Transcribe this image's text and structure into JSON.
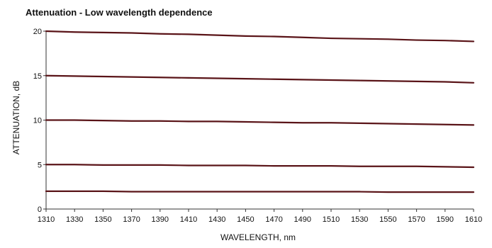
{
  "chart_data": {
    "type": "line",
    "title": "Attenuation - Low wavelength dependence",
    "xlabel": "WAVELENGTH, nm",
    "ylabel": "ATTENUATION, dB",
    "xlim": [
      1310,
      1610
    ],
    "ylim": [
      0,
      20
    ],
    "x_ticks": [
      1310,
      1330,
      1350,
      1370,
      1390,
      1410,
      1430,
      1450,
      1470,
      1490,
      1510,
      1530,
      1550,
      1570,
      1590,
      1610
    ],
    "y_ticks": [
      0,
      5,
      10,
      15,
      20
    ],
    "grid": false,
    "legend": "none",
    "line_color": "#5a1418",
    "x": [
      1310,
      1330,
      1350,
      1370,
      1390,
      1410,
      1430,
      1450,
      1470,
      1490,
      1510,
      1530,
      1550,
      1570,
      1590,
      1610
    ],
    "series": [
      {
        "values": [
          20.0,
          19.9,
          19.85,
          19.8,
          19.7,
          19.65,
          19.55,
          19.45,
          19.4,
          19.3,
          19.2,
          19.15,
          19.1,
          19.0,
          18.95,
          18.85
        ]
      },
      {
        "values": [
          15.0,
          14.95,
          14.9,
          14.85,
          14.8,
          14.75,
          14.7,
          14.65,
          14.6,
          14.55,
          14.5,
          14.45,
          14.4,
          14.35,
          14.3,
          14.2
        ]
      },
      {
        "values": [
          10.0,
          10.0,
          9.95,
          9.9,
          9.9,
          9.85,
          9.85,
          9.8,
          9.75,
          9.7,
          9.7,
          9.65,
          9.6,
          9.55,
          9.5,
          9.45
        ]
      },
      {
        "values": [
          5.0,
          5.0,
          4.95,
          4.95,
          4.95,
          4.9,
          4.9,
          4.9,
          4.85,
          4.85,
          4.85,
          4.8,
          4.8,
          4.8,
          4.75,
          4.7
        ]
      },
      {
        "values": [
          2.0,
          2.0,
          2.0,
          1.95,
          1.95,
          1.95,
          1.95,
          1.95,
          1.95,
          1.95,
          1.95,
          1.95,
          1.9,
          1.9,
          1.9,
          1.9
        ]
      }
    ]
  }
}
